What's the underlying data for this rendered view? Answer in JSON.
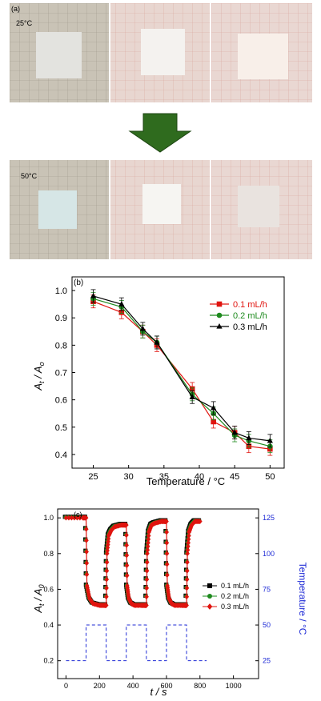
{
  "photos": {
    "panel_label": "(a)",
    "top_temp_label": "25°C",
    "bottom_temp_label": "50°C",
    "arrow_color": "#2f6b1e",
    "background_colors": [
      "#c9c3b6",
      "#e8d6d0",
      "#e9d7d2"
    ],
    "sample_colors_top": [
      "#e3e3df",
      "#f4f2ef",
      "#f8efe9"
    ],
    "sample_colors_bottom": [
      "#d6e6e6",
      "#f6f5f2",
      "#e9e3df"
    ]
  },
  "chart_data": [
    {
      "panel_label": "(b)",
      "type": "line",
      "xlabel": "Temperature / °C",
      "ylabel_main": "A",
      "ylabel_sub1": "t",
      "ylabel_mid": " / A",
      "ylabel_sub2": "o",
      "xlim": [
        22,
        52
      ],
      "ylim": [
        0.35,
        1.05
      ],
      "xticks": [
        "25",
        "30",
        "35",
        "40",
        "45",
        "50"
      ],
      "yticks": [
        "0.4",
        "0.5",
        "0.6",
        "0.7",
        "0.8",
        "0.9",
        "1.0"
      ],
      "series": [
        {
          "name": "0.1 mL/h",
          "color": "#e0140f",
          "marker": "square",
          "x": [
            25,
            29,
            32,
            34,
            39,
            42,
            45,
            47,
            50
          ],
          "y": [
            0.96,
            0.92,
            0.85,
            0.8,
            0.64,
            0.52,
            0.48,
            0.43,
            0.42
          ]
        },
        {
          "name": "0.2 mL/h",
          "color": "#1e8a1e",
          "marker": "circle",
          "x": [
            25,
            29,
            32,
            34,
            39,
            42,
            45,
            47,
            50
          ],
          "y": [
            0.97,
            0.94,
            0.85,
            0.81,
            0.62,
            0.55,
            0.47,
            0.45,
            0.43
          ]
        },
        {
          "name": "0.3 mL/h",
          "color": "#000000",
          "marker": "triangle",
          "x": [
            25,
            29,
            32,
            34,
            39,
            42,
            45,
            47,
            50
          ],
          "y": [
            0.98,
            0.95,
            0.86,
            0.81,
            0.61,
            0.57,
            0.48,
            0.46,
            0.45
          ]
        }
      ]
    },
    {
      "panel_label": "(c)",
      "type": "line",
      "xlabel": "t / s",
      "ylabel_main": "A",
      "ylabel_sub1": "t",
      "ylabel_mid": " / A",
      "ylabel_sub2": "0",
      "y2label": "Temperature / °C",
      "xlim": [
        -50,
        1150
      ],
      "ylim": [
        0.1,
        1.05
      ],
      "y2lim": [
        12.5,
        131.25
      ],
      "xticks": [
        "0",
        "200",
        "400",
        "600",
        "800",
        "1000"
      ],
      "yticks": [
        "0.2",
        "0.4",
        "0.6",
        "0.8",
        "1.0"
      ],
      "y2ticks": [
        "25",
        "50",
        "75",
        "100",
        "125"
      ],
      "series": [
        {
          "name": "0.1 mL/h",
          "color": "#000000",
          "marker": "square"
        },
        {
          "name": "0.2 mL/h",
          "color": "#1e8a1e",
          "marker": "circle"
        },
        {
          "name": "0.3 mL/h",
          "color": "#e0140f",
          "marker": "diamond"
        }
      ],
      "absorbance_trace": {
        "color": "#e0140f",
        "x": [
          0,
          100,
          120,
          125,
          140,
          160,
          200,
          230,
          240,
          245,
          255,
          270,
          290,
          330,
          350,
          360,
          365,
          375,
          390,
          410,
          450,
          470,
          480,
          485,
          495,
          510,
          530,
          570,
          590,
          600,
          605,
          615,
          630,
          650,
          690,
          710,
          720,
          725,
          735,
          750,
          770,
          800
        ],
        "y": [
          1.0,
          1.0,
          1.0,
          0.62,
          0.55,
          0.52,
          0.51,
          0.51,
          0.51,
          0.8,
          0.9,
          0.93,
          0.95,
          0.96,
          0.96,
          0.96,
          0.62,
          0.55,
          0.52,
          0.51,
          0.51,
          0.51,
          0.51,
          0.8,
          0.92,
          0.96,
          0.97,
          0.98,
          0.98,
          0.98,
          0.62,
          0.55,
          0.52,
          0.51,
          0.51,
          0.51,
          0.51,
          0.8,
          0.92,
          0.96,
          0.98,
          0.98
        ]
      },
      "temperature_trace": {
        "color": "#1f2bd6",
        "style": "dashed",
        "x": [
          0,
          120,
          120,
          240,
          240,
          360,
          360,
          480,
          480,
          600,
          600,
          720,
          720,
          840
        ],
        "y": [
          25,
          25,
          50,
          50,
          25,
          25,
          50,
          50,
          25,
          25,
          50,
          50,
          25,
          25
        ]
      }
    }
  ]
}
